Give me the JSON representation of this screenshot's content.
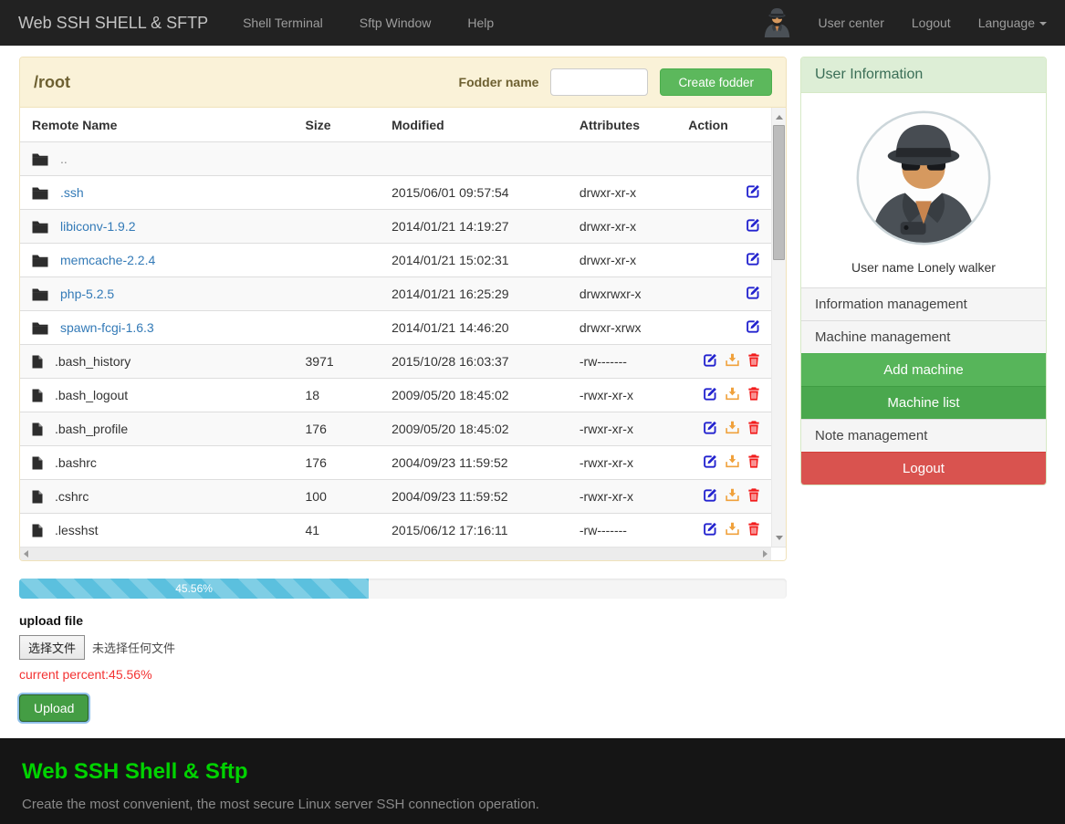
{
  "navbar": {
    "brand": "Web SSH SHELL & SFTP",
    "items": [
      {
        "label": "Shell Terminal"
      },
      {
        "label": "Sftp Window"
      },
      {
        "label": "Help"
      }
    ],
    "right": {
      "user_center": "User center",
      "logout": "Logout",
      "language": "Language"
    }
  },
  "file_panel": {
    "path": "/root",
    "fodder_label": "Fodder name",
    "fodder_value": "",
    "create_button": "Create fodder",
    "table": {
      "headers": [
        "Remote Name",
        "Size",
        "Modified",
        "Attributes",
        "Action"
      ],
      "rows": [
        {
          "icon": "folder",
          "name": "..",
          "name_style": "muted",
          "size": "",
          "modified": "",
          "attributes": "",
          "actions": []
        },
        {
          "icon": "folder",
          "name": ".ssh",
          "name_style": "link",
          "size": "",
          "modified": "2015/06/01 09:57:54",
          "attributes": "drwxr-xr-x",
          "actions": [
            "edit"
          ]
        },
        {
          "icon": "folder",
          "name": "libiconv-1.9.2",
          "name_style": "link",
          "size": "",
          "modified": "2014/01/21 14:19:27",
          "attributes": "drwxr-xr-x",
          "actions": [
            "edit"
          ]
        },
        {
          "icon": "folder",
          "name": "memcache-2.2.4",
          "name_style": "link",
          "size": "",
          "modified": "2014/01/21 15:02:31",
          "attributes": "drwxr-xr-x",
          "actions": [
            "edit"
          ]
        },
        {
          "icon": "folder",
          "name": "php-5.2.5",
          "name_style": "link",
          "size": "",
          "modified": "2014/01/21 16:25:29",
          "attributes": "drwxrwxr-x",
          "actions": [
            "edit"
          ]
        },
        {
          "icon": "folder",
          "name": "spawn-fcgi-1.6.3",
          "name_style": "link",
          "size": "",
          "modified": "2014/01/21 14:46:20",
          "attributes": "drwxr-xrwx",
          "actions": [
            "edit"
          ]
        },
        {
          "icon": "file",
          "name": ".bash_history",
          "name_style": "plain",
          "size": "3971",
          "modified": "2015/10/28 16:03:37",
          "attributes": "-rw-------",
          "actions": [
            "edit",
            "download",
            "delete"
          ]
        },
        {
          "icon": "file",
          "name": ".bash_logout",
          "name_style": "plain",
          "size": "18",
          "modified": "2009/05/20 18:45:02",
          "attributes": "-rwxr-xr-x",
          "actions": [
            "edit",
            "download",
            "delete"
          ]
        },
        {
          "icon": "file",
          "name": ".bash_profile",
          "name_style": "plain",
          "size": "176",
          "modified": "2009/05/20 18:45:02",
          "attributes": "-rwxr-xr-x",
          "actions": [
            "edit",
            "download",
            "delete"
          ]
        },
        {
          "icon": "file",
          "name": ".bashrc",
          "name_style": "plain",
          "size": "176",
          "modified": "2004/09/23 11:59:52",
          "attributes": "-rwxr-xr-x",
          "actions": [
            "edit",
            "download",
            "delete"
          ]
        },
        {
          "icon": "file",
          "name": ".cshrc",
          "name_style": "plain",
          "size": "100",
          "modified": "2004/09/23 11:59:52",
          "attributes": "-rwxr-xr-x",
          "actions": [
            "edit",
            "download",
            "delete"
          ]
        },
        {
          "icon": "file",
          "name": ".lesshst",
          "name_style": "plain",
          "size": "41",
          "modified": "2015/06/12 17:16:11",
          "attributes": "-rw-------",
          "actions": [
            "edit",
            "download",
            "delete"
          ]
        }
      ]
    }
  },
  "upload": {
    "progress_percent": 45.56,
    "progress_label": "45.56%",
    "title": "upload file",
    "file_button": "选择文件",
    "file_status": "未选择任何文件",
    "current_percent": "current percent:45.56%",
    "upload_button": "Upload"
  },
  "sidebar": {
    "title": "User Information",
    "username": "User name Lonely walker",
    "items": [
      {
        "label": "Information management",
        "style": "default"
      },
      {
        "label": "Machine management",
        "style": "default"
      },
      {
        "label": "Add machine",
        "style": "green"
      },
      {
        "label": "Machine list",
        "style": "green-dark"
      },
      {
        "label": "Note management",
        "style": "default"
      },
      {
        "label": "Logout",
        "style": "red"
      }
    ]
  },
  "footer": {
    "title": "Web SSH Shell & Sftp",
    "subtitle": "Create the most convenient, the most secure Linux server SSH connection operation."
  },
  "colors": {
    "navbar_bg": "#222222",
    "panel_heading_bg": "#faf2d8",
    "panel_heading_text": "#6d6031",
    "button_green": "#5cb85c",
    "link_blue": "#337ab7",
    "progress_bar": "#5bc0de",
    "percent_red": "#f33232",
    "sidebar_heading_bg": "#ddeed6",
    "sidebar_green": "#57b55a",
    "sidebar_red": "#d9534f",
    "footer_bg": "#151515",
    "footer_title_green": "#00d300"
  }
}
